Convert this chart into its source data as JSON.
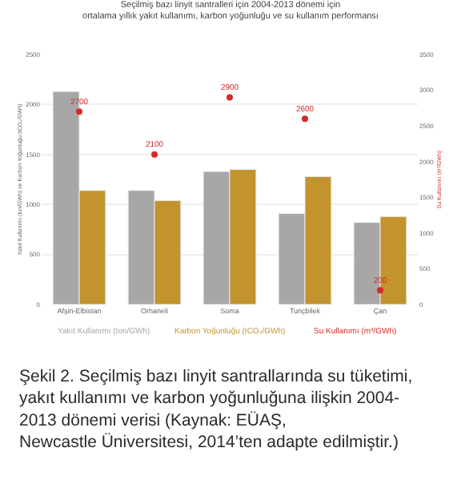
{
  "chart_data": {
    "type": "bar",
    "title": "Seçilmiş bazı linyit santralleri için 2004-2013 dönemi için\nortalama yıllık yakıt kullanımı, karbon yoğunluğu ve su kullanım performansı",
    "ylabel": "Yakıt Kullanımı (ton/GWh) ve Karbon Yoğunluğu (tCO₂/GWh)",
    "y2label": "Su Kullanımı (m³/GWh)",
    "categories": [
      "Afşin-Elbistan",
      "Orhaneli",
      "Soma",
      "Tunçbilek",
      "Çan"
    ],
    "series": [
      {
        "name": "Yakıt Kullanımı (ton/GWh)",
        "color": "#a8a6a7",
        "values": [
          2130,
          1140,
          1330,
          910,
          820
        ]
      },
      {
        "name": "Karbon Yoğunluğu (tCO₂/GWh)",
        "color": "#c3942e",
        "values": [
          1140,
          1040,
          1350,
          1280,
          880
        ]
      },
      {
        "name": "Su Kullanımı (m³/GWh)",
        "type": "scatter",
        "axis": "y2",
        "color": "#d62a2a",
        "marker": "circle",
        "values": [
          2700,
          2100,
          2900,
          2600,
          200
        ],
        "value_labels": [
          "2700",
          "2100",
          "2900",
          "2600",
          "200"
        ]
      }
    ],
    "ylim": [
      0,
      2500
    ],
    "yticks": [
      0,
      500,
      1000,
      1500,
      2000,
      2500
    ],
    "y2lim": [
      0,
      3500
    ],
    "y2ticks": [
      0,
      500,
      1000,
      1500,
      2000,
      2500,
      3000,
      3500
    ],
    "grid": "y",
    "legend": "bottom",
    "annotations": [
      "Şekil 2. Seçilmiş bazı linyit santrallarında su tüketimi,\nyakıt kullanımı ve karbon yoğunluğuna ilişkin 2004-\n2013 dönemi verisi (Kaynak: EÜAŞ,\nNewcastle Üniversitesi, 2014’ten adapte edilmiştir.)"
    ]
  }
}
